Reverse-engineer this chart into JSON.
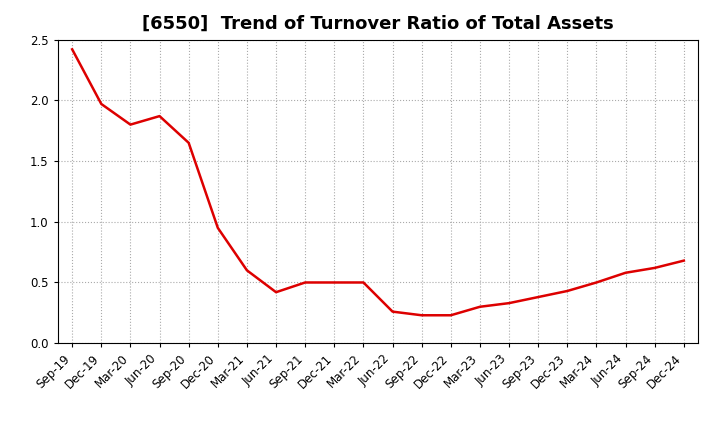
{
  "title": "[6550]  Trend of Turnover Ratio of Total Assets",
  "x_labels": [
    "Sep-19",
    "Dec-19",
    "Mar-20",
    "Jun-20",
    "Sep-20",
    "Dec-20",
    "Mar-21",
    "Jun-21",
    "Sep-21",
    "Dec-21",
    "Mar-22",
    "Jun-22",
    "Sep-22",
    "Dec-22",
    "Mar-23",
    "Jun-23",
    "Sep-23",
    "Dec-23",
    "Mar-24",
    "Jun-24",
    "Sep-24",
    "Dec-24"
  ],
  "y_values": [
    2.42,
    1.97,
    1.8,
    1.87,
    1.65,
    0.95,
    0.6,
    0.42,
    0.5,
    0.5,
    0.5,
    0.26,
    0.23,
    0.23,
    0.3,
    0.33,
    0.38,
    0.43,
    0.5,
    0.58,
    0.62,
    0.68
  ],
  "line_color": "#dd0000",
  "line_width": 1.8,
  "ylim": [
    0.0,
    2.5
  ],
  "yticks": [
    0.0,
    0.5,
    1.0,
    1.5,
    2.0,
    2.5
  ],
  "ytick_labels": [
    "0.0",
    "0.5",
    "1.0",
    "1.5",
    "2.0",
    "2.5"
  ],
  "background_color": "#ffffff",
  "grid_color": "#aaaaaa",
  "title_fontsize": 13,
  "tick_fontsize": 8.5
}
